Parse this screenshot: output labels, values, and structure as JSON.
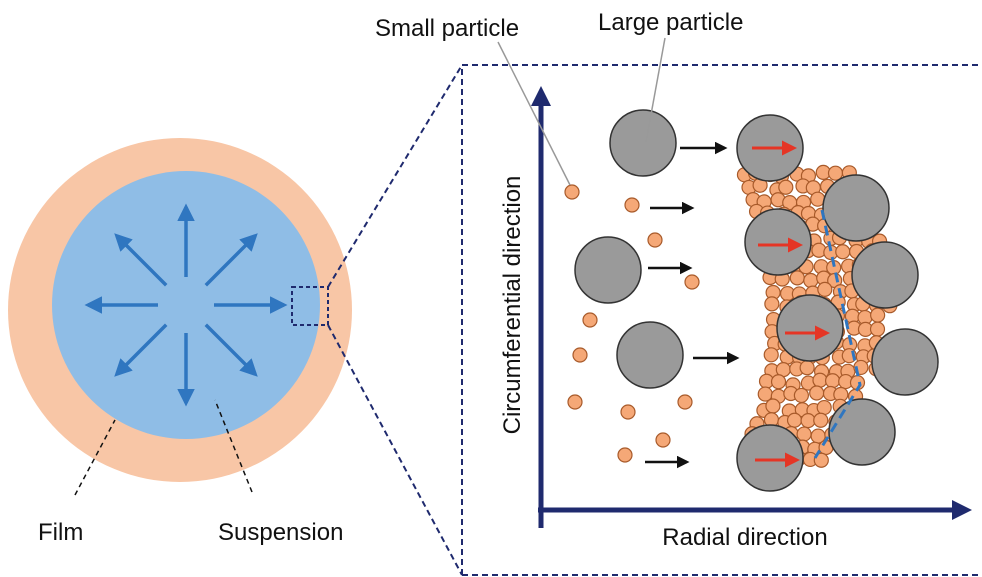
{
  "labels": {
    "small_particle": "Small particle",
    "large_particle": "Large particle",
    "y_axis": "Circumferential direction",
    "x_axis": "Radial direction",
    "film": "Film",
    "suspension": "Suspension"
  }
}
